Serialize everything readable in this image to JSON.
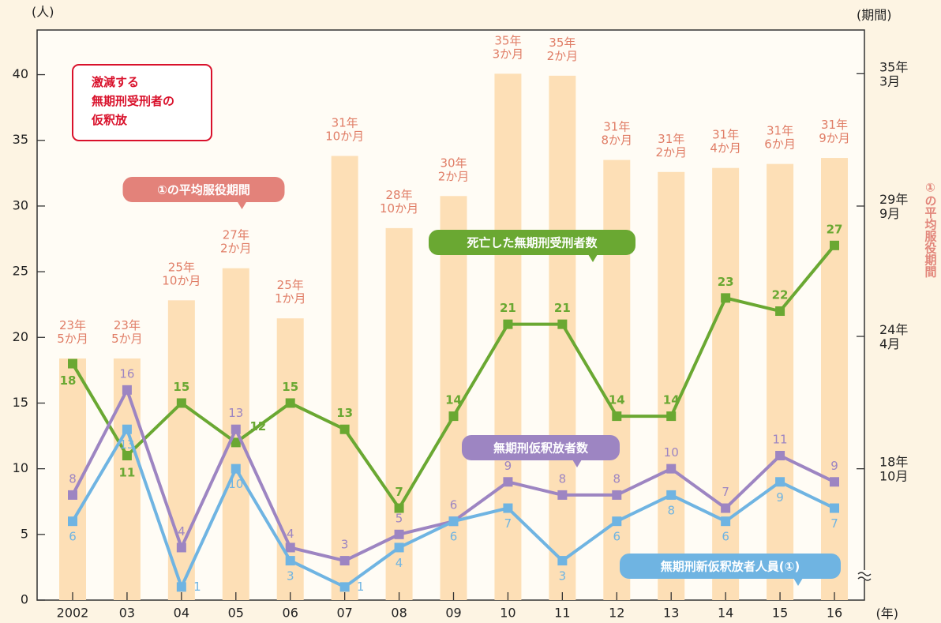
{
  "chart_data": {
    "type": "bar_line",
    "y_unit": "(人)",
    "y2_unit": "(期間)",
    "x_unit": "(年)",
    "y2_title": "①の平均服役期間",
    "annotation": "激減する\n無期刑受刑者の\n仮釈放",
    "categories": [
      "2002",
      "03",
      "04",
      "05",
      "06",
      "07",
      "08",
      "09",
      "10",
      "11",
      "12",
      "13",
      "14",
      "15",
      "16"
    ],
    "ylim": [
      0,
      43.4
    ],
    "yticks": [
      0,
      5,
      10,
      15,
      20,
      25,
      30,
      35,
      40
    ],
    "y2lim": [
      160.5,
      444.8
    ],
    "y2ticks": [
      {
        "value": 226,
        "label": "18年\n10月"
      },
      {
        "value": 292,
        "label": "24年\n4月"
      },
      {
        "value": 357,
        "label": "29年\n9月"
      },
      {
        "value": 423,
        "label": "35年\n3月"
      }
    ],
    "bars": {
      "name": "①の平均服役期間",
      "color": "#fddfb6",
      "axis": "y2",
      "values": [
        281,
        281,
        310,
        326,
        301,
        382,
        346,
        362,
        423,
        422,
        380,
        374,
        376,
        378,
        381
      ],
      "value_labels": [
        "23年\n5か月",
        "23年\n5か月",
        "25年\n10か月",
        "27年\n2か月",
        "25年\n1か月",
        "31年\n10か月",
        "28年\n10か月",
        "30年\n2か月",
        "35年\n3か月",
        "35年\n2か月",
        "31年\n8か月",
        "31年\n2か月",
        "31年\n4か月",
        "31年\n6か月",
        "31年\n9か月"
      ]
    },
    "series": [
      {
        "name": "死亡した無期刑受刑者数",
        "color": "#6aa832",
        "values": [
          18,
          11,
          15,
          12,
          15,
          13,
          7,
          14,
          21,
          21,
          14,
          14,
          23,
          22,
          27
        ]
      },
      {
        "name": "無期刑仮釈放者数",
        "color": "#9d85c2",
        "values": [
          8,
          16,
          4,
          13,
          4,
          3,
          5,
          6,
          9,
          8,
          8,
          10,
          7,
          11,
          9
        ]
      },
      {
        "name": "無期刑新仮釈放者人員(①)",
        "color": "#6fb4e2",
        "values": [
          6,
          13,
          1,
          10,
          3,
          1,
          4,
          6,
          7,
          3,
          6,
          8,
          6,
          9,
          7
        ]
      }
    ]
  }
}
